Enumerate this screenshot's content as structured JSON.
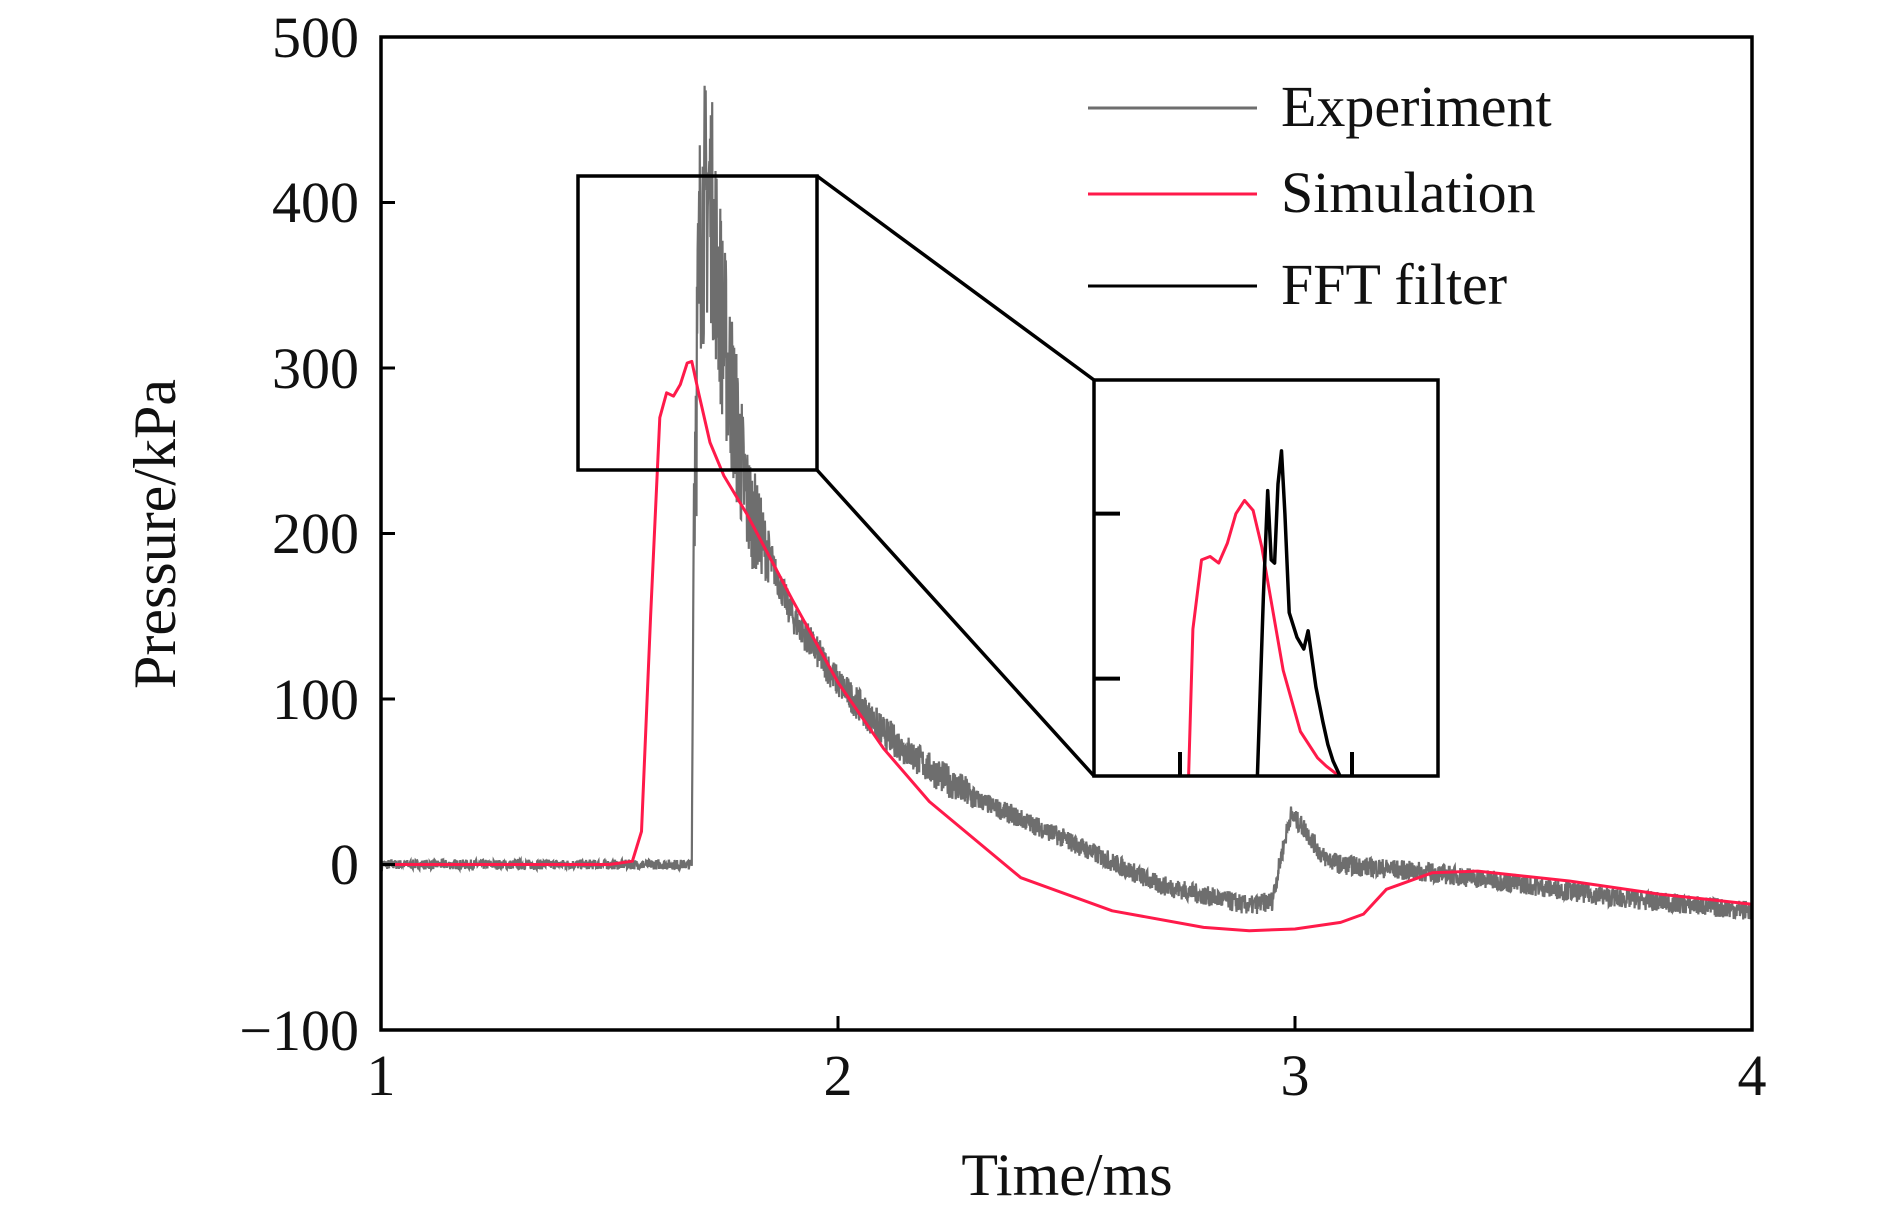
{
  "chart_data": {
    "type": "line",
    "xlabel": "Time/ms",
    "ylabel": "Pressure/kPa",
    "xlim": [
      1,
      4
    ],
    "ylim": [
      -100,
      500
    ],
    "xticks": [
      "1",
      "2",
      "3",
      "4"
    ],
    "yticks": [
      "−100",
      "0",
      "100",
      "200",
      "300",
      "400",
      "500"
    ],
    "grid": false,
    "legend_position": "top-right",
    "series": [
      {
        "name": "Experiment",
        "color": "#6e6e6e",
        "x": [
          1,
          1.3,
          1.6,
          1.68,
          1.685,
          1.7,
          1.72,
          1.75,
          1.8,
          1.85,
          1.9,
          2.0,
          2.1,
          2.2,
          2.3,
          2.5,
          2.7,
          2.9,
          2.95,
          2.97,
          2.99,
          3.02,
          3.06,
          3.1,
          3.3,
          3.5,
          3.7,
          4.0
        ],
        "y": [
          0,
          0,
          0,
          0,
          240,
          390,
          405,
          320,
          220,
          185,
          150,
          110,
          80,
          58,
          40,
          15,
          -12,
          -25,
          -22,
          5,
          30,
          22,
          5,
          0,
          -5,
          -12,
          -20,
          -28
        ]
      },
      {
        "name": "Simulation",
        "color": "#ff1a4a",
        "x": [
          1,
          1.5,
          1.55,
          1.57,
          1.59,
          1.61,
          1.625,
          1.64,
          1.655,
          1.67,
          1.68,
          1.695,
          1.72,
          1.75,
          1.8,
          1.9,
          2.0,
          2.1,
          2.2,
          2.4,
          2.6,
          2.8,
          2.9,
          3.0,
          3.1,
          3.15,
          3.2,
          3.3,
          3.4,
          3.6,
          3.8,
          4.0
        ],
        "y": [
          0,
          0,
          2,
          20,
          150,
          270,
          285,
          283,
          290,
          303,
          304,
          285,
          255,
          235,
          212,
          160,
          110,
          70,
          38,
          -8,
          -28,
          -38,
          -40,
          -39,
          -35,
          -30,
          -15,
          -5,
          -4,
          -10,
          -18,
          -24
        ]
      }
    ],
    "inset": {
      "xlim": [
        1.5,
        1.9
      ],
      "ylim": [
        141,
        381
      ],
      "xticks": [
        1.6,
        1.8
      ],
      "yticks": [
        200,
        300
      ],
      "zoom_region": {
        "x": [
          1.433,
          1.956
        ],
        "y": [
          239,
          417
        ]
      },
      "series": [
        {
          "name": "Simulation",
          "color": "#ff1a4a",
          "x": [
            1.61,
            1.615,
            1.625,
            1.635,
            1.645,
            1.655,
            1.665,
            1.675,
            1.685,
            1.695,
            1.705,
            1.72,
            1.74,
            1.76,
            1.77,
            1.785
          ],
          "y": [
            141,
            230,
            272,
            274,
            270,
            282,
            300,
            308,
            302,
            280,
            250,
            205,
            168,
            152,
            147,
            141
          ]
        },
        {
          "name": "FFT filter",
          "color": "#000000",
          "x": [
            1.69,
            1.697,
            1.702,
            1.706,
            1.71,
            1.714,
            1.718,
            1.722,
            1.727,
            1.736,
            1.744,
            1.749,
            1.758,
            1.766,
            1.772,
            1.778,
            1.786
          ],
          "y": [
            141,
            250,
            314,
            272,
            270,
            318,
            338,
            300,
            240,
            225,
            218,
            229,
            195,
            174,
            160,
            150,
            141
          ]
        }
      ]
    }
  }
}
